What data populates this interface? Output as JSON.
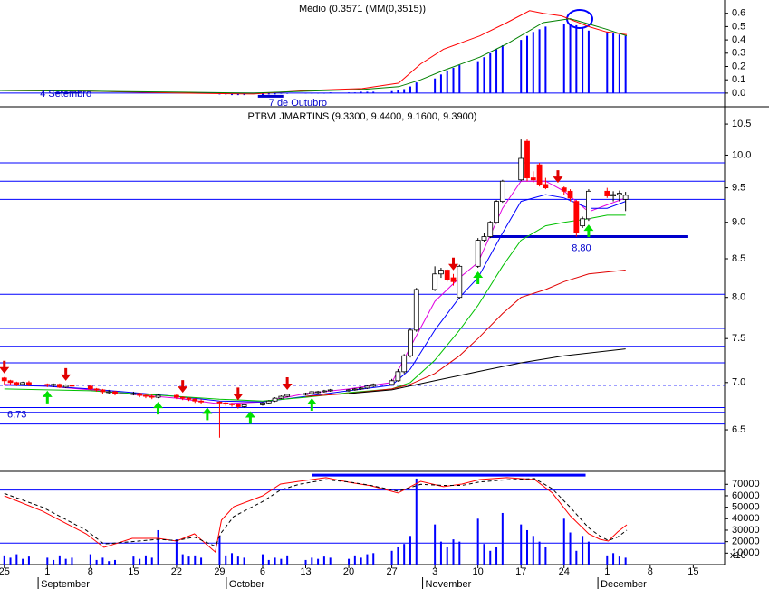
{
  "chart_data": [
    {
      "type": "bar",
      "title": "Médio (0.3571 (MM(0,3515))",
      "xlim": [
        -0.7,
        117.1
      ],
      "ylim": [
        -0.1,
        0.7
      ],
      "yticks": [
        {
          "value": 0,
          "label": "0.0"
        },
        0.1,
        0.2,
        0.3,
        0.4,
        0.5,
        0.6
      ],
      "color": "#0000ff",
      "x": [
        35,
        36,
        37,
        38,
        39,
        42,
        43,
        44,
        45,
        46,
        49,
        50,
        51,
        52,
        53,
        56,
        57,
        58,
        59,
        60,
        63,
        64,
        65,
        66,
        67,
        70,
        71,
        72,
        73,
        74,
        77,
        78,
        79,
        80,
        81,
        84,
        85,
        86,
        87,
        88,
        91,
        92,
        93,
        94,
        95,
        98,
        99,
        100,
        101
      ],
      "values": [
        -0.01,
        -0.01,
        -0.015,
        -0.015,
        -0.015,
        -0.015,
        -0.01,
        -0.01,
        -0.005,
        -0.005,
        0,
        0,
        0,
        0,
        0.005,
        0.005,
        0.005,
        0.01,
        0.01,
        0.01,
        0.015,
        0.02,
        0.03,
        0.05,
        0.08,
        0.11,
        0.14,
        0.17,
        0.19,
        0.21,
        0.24,
        0.27,
        0.3,
        0.33,
        0.36,
        0.4,
        0.43,
        0.46,
        0.48,
        0.5,
        0.52,
        0.52,
        0.51,
        0.49,
        0.47,
        0.46,
        0.45,
        0.44,
        0.43
      ],
      "lines": [
        {
          "color": "#ff0000",
          "x": [
            -0.7,
            14,
            28.7,
            40.5,
            49.3,
            58.2,
            64.1,
            67.7,
            71.4,
            77.3,
            81.7,
            85.4,
            87.6,
            90.6,
            95,
            97.9,
            101.2
          ],
          "values": [
            0.02,
            0.014,
            0,
            -0.007,
            0.02,
            0.034,
            0.075,
            0.22,
            0.33,
            0.43,
            0.53,
            0.62,
            0.6,
            0.58,
            0.5,
            0.46,
            0.44
          ]
        },
        {
          "color": "#008000",
          "x": [
            -0.7,
            14,
            28.7,
            40.5,
            49.3,
            58.2,
            64.1,
            67.7,
            71.4,
            77.3,
            81.7,
            87.6,
            92,
            95,
            97.9,
            101.2
          ],
          "values": [
            0.02,
            0.014,
            0.007,
            0,
            0.014,
            0.027,
            0.048,
            0.1,
            0.17,
            0.27,
            0.37,
            0.53,
            0.56,
            0.52,
            0.48,
            0.43
          ]
        }
      ],
      "annotations": [
        {
          "text": "4 Setembro",
          "x": 10
        },
        {
          "text": "7 de Outubro",
          "x": 43
        }
      ]
    },
    {
      "type": "candlestick",
      "title": "PTBVLJMARTINS (9.3300, 9.4400, 9.1600, 9.3900)",
      "xlim": [
        -0.7,
        117.1
      ],
      "ylim": [
        6.1,
        10.75
      ],
      "log": true,
      "yticks": [
        6.5,
        {
          "value": 7,
          "label": "7.0"
        },
        7.5,
        {
          "value": 8,
          "label": "8.0"
        },
        8.5,
        {
          "value": 9,
          "label": "9.0"
        },
        9.5,
        {
          "value": 10,
          "label": "10.0"
        },
        10.5
      ],
      "up_color": "#ffffff",
      "down_color": "#ff0000",
      "x": [
        0,
        1,
        2,
        3,
        4,
        7,
        8,
        9,
        10,
        11,
        14,
        15,
        16,
        17,
        18,
        21,
        22,
        23,
        24,
        25,
        28,
        29,
        30,
        31,
        32,
        35,
        36,
        37,
        38,
        39,
        42,
        43,
        44,
        45,
        46,
        49,
        50,
        51,
        52,
        53,
        56,
        57,
        58,
        59,
        60,
        63,
        64,
        65,
        66,
        67,
        70,
        71,
        72,
        73,
        74,
        77,
        78,
        79,
        80,
        81,
        84,
        85,
        86,
        87,
        88,
        91,
        92,
        93,
        94,
        95,
        98,
        99,
        100,
        101
      ],
      "open": [
        7.05,
        7.02,
        7.0,
        6.98,
        7.0,
        6.98,
        6.97,
        6.98,
        6.95,
        6.97,
        6.96,
        6.93,
        6.92,
        6.9,
        6.9,
        6.88,
        6.88,
        6.86,
        6.85,
        6.84,
        6.86,
        6.84,
        6.83,
        6.82,
        6.8,
        6.79,
        6.78,
        6.77,
        6.76,
        6.74,
        6.76,
        6.78,
        6.8,
        6.83,
        6.85,
        6.87,
        6.88,
        6.9,
        6.9,
        6.91,
        6.92,
        6.92,
        6.93,
        6.94,
        6.96,
        6.98,
        7.02,
        7.12,
        7.3,
        7.6,
        8.1,
        8.3,
        8.35,
        8.25,
        8.0,
        8.4,
        8.75,
        8.8,
        9.0,
        9.3,
        9.62,
        10.22,
        9.65,
        9.85,
        9.55,
        9.5,
        9.45,
        9.3,
        8.95,
        9.05,
        9.45,
        9.38,
        9.4,
        9.33
      ],
      "high": [
        7.06,
        7.03,
        7.01,
        7.01,
        7.02,
        6.99,
        6.99,
        6.99,
        6.98,
        6.98,
        6.97,
        6.94,
        6.93,
        6.92,
        6.91,
        6.9,
        6.89,
        6.88,
        6.87,
        6.88,
        6.87,
        6.85,
        6.84,
        6.83,
        6.82,
        6.8,
        6.79,
        6.78,
        6.77,
        6.77,
        6.79,
        6.81,
        6.84,
        6.86,
        6.88,
        6.89,
        6.91,
        6.91,
        6.92,
        6.93,
        6.93,
        6.94,
        6.95,
        6.97,
        6.99,
        7.04,
        7.15,
        7.32,
        7.62,
        8.12,
        8.4,
        8.38,
        8.36,
        8.3,
        8.42,
        8.78,
        8.85,
        9.02,
        9.32,
        9.62,
        10.25,
        10.25,
        9.75,
        9.88,
        9.65,
        9.52,
        9.48,
        9.32,
        9.08,
        9.48,
        9.5,
        9.45,
        9.46,
        9.44
      ],
      "low": [
        6.98,
        6.98,
        6.96,
        6.97,
        6.96,
        6.95,
        6.95,
        6.94,
        6.94,
        6.94,
        6.92,
        6.9,
        6.88,
        6.88,
        6.86,
        6.86,
        6.84,
        6.83,
        6.82,
        6.83,
        6.82,
        6.81,
        6.8,
        6.78,
        6.77,
        6.42,
        6.75,
        6.74,
        6.72,
        6.73,
        6.75,
        6.77,
        6.79,
        6.82,
        6.84,
        6.86,
        6.87,
        6.88,
        6.89,
        6.9,
        6.9,
        6.91,
        6.92,
        6.93,
        6.95,
        6.97,
        7.01,
        7.1,
        7.28,
        7.58,
        8.08,
        8.25,
        8.2,
        8.15,
        7.98,
        8.38,
        8.72,
        8.78,
        8.98,
        9.28,
        9.6,
        9.6,
        9.58,
        9.52,
        9.48,
        9.4,
        9.3,
        8.8,
        8.92,
        9.02,
        9.35,
        9.3,
        9.3,
        9.16
      ],
      "close": [
        7.02,
        7.0,
        6.98,
        7.0,
        6.98,
        6.97,
        6.98,
        6.95,
        6.97,
        6.96,
        6.93,
        6.92,
        6.9,
        6.9,
        6.88,
        6.88,
        6.86,
        6.85,
        6.84,
        6.86,
        6.84,
        6.83,
        6.82,
        6.8,
        6.79,
        6.78,
        6.77,
        6.76,
        6.74,
        6.76,
        6.78,
        6.8,
        6.83,
        6.85,
        6.87,
        6.88,
        6.9,
        6.9,
        6.91,
        6.92,
        6.92,
        6.93,
        6.94,
        6.96,
        6.98,
        7.02,
        7.12,
        7.3,
        7.6,
        8.1,
        8.3,
        8.35,
        8.22,
        8.2,
        8.4,
        8.75,
        8.8,
        9.0,
        9.3,
        9.6,
        9.95,
        9.65,
        9.62,
        9.55,
        9.5,
        9.45,
        9.35,
        8.85,
        9.05,
        9.45,
        9.38,
        9.4,
        9.42,
        9.39
      ],
      "lines": [
        {
          "color": "#e000e0",
          "x": [
            0,
            7,
            14,
            21,
            28,
            35,
            42,
            49,
            56,
            63,
            66,
            70,
            74,
            77,
            81,
            84,
            88,
            91,
            95,
            98,
            101
          ],
          "values": [
            6.98,
            6.96,
            6.92,
            6.87,
            6.83,
            6.77,
            6.79,
            6.88,
            6.93,
            7.0,
            7.4,
            7.95,
            8.25,
            8.45,
            9.2,
            9.6,
            9.6,
            9.45,
            9.15,
            9.25,
            9.35
          ]
        },
        {
          "color": "#0000ff",
          "x": [
            0,
            7,
            14,
            21,
            28,
            35,
            42,
            49,
            56,
            63,
            66,
            70,
            74,
            77,
            81,
            84,
            88,
            91,
            95,
            98,
            101
          ],
          "values": [
            6.97,
            6.96,
            6.93,
            6.89,
            6.85,
            6.8,
            6.79,
            6.85,
            6.91,
            6.97,
            7.15,
            7.6,
            8.0,
            8.25,
            8.85,
            9.3,
            9.4,
            9.35,
            9.2,
            9.2,
            9.3
          ]
        },
        {
          "color": "#00c000",
          "x": [
            0,
            7,
            14,
            21,
            28,
            35,
            42,
            49,
            56,
            63,
            66,
            70,
            74,
            77,
            81,
            84,
            88,
            91,
            95,
            98,
            101
          ],
          "values": [
            6.93,
            6.92,
            6.91,
            6.88,
            6.85,
            6.82,
            6.8,
            6.84,
            6.89,
            6.93,
            7.0,
            7.25,
            7.6,
            7.9,
            8.4,
            8.75,
            8.95,
            9.0,
            9.05,
            9.1,
            9.1
          ]
        },
        {
          "color": "#e00000",
          "x": [
            49,
            56,
            63,
            66,
            70,
            74,
            77,
            81,
            84,
            88,
            91,
            95,
            101
          ],
          "values": [
            6.85,
            6.88,
            6.93,
            6.98,
            7.1,
            7.3,
            7.5,
            7.8,
            8.0,
            8.1,
            8.2,
            8.3,
            8.35
          ]
        },
        {
          "color": "#000000",
          "x": [
            56,
            63,
            70,
            77,
            84,
            91,
            101
          ],
          "values": [
            6.88,
            6.92,
            7.02,
            7.12,
            7.22,
            7.3,
            7.38
          ]
        }
      ],
      "levels": [
        9.88,
        9.6,
        9.33,
        8.04,
        7.62,
        7.41,
        7.22,
        6.68,
        6.56
      ],
      "dashed_level": 6.97,
      "marked_level": {
        "value": 6.73,
        "label": "6,73"
      },
      "support": {
        "value": 8.8,
        "label": "8,80",
        "x": [
          78.8,
          111.2
        ]
      },
      "sell_signals": [
        0,
        10,
        29,
        38,
        46,
        73,
        90
      ],
      "buy_signals": [
        7,
        25,
        33,
        40,
        50,
        77,
        95
      ]
    },
    {
      "type": "bar",
      "xlim": [
        -0.7,
        117.1
      ],
      "ylim": [
        0,
        80000
      ],
      "yticks": [
        10000,
        20000,
        30000,
        40000,
        50000,
        60000,
        70000
      ],
      "unit_label": "x10",
      "color": "#0000ff",
      "x": [
        0,
        1,
        2,
        3,
        4,
        7,
        8,
        9,
        10,
        11,
        14,
        15,
        16,
        17,
        18,
        21,
        22,
        23,
        24,
        25,
        28,
        29,
        30,
        31,
        32,
        35,
        36,
        37,
        38,
        39,
        42,
        43,
        44,
        45,
        46,
        49,
        50,
        51,
        52,
        53,
        56,
        57,
        58,
        59,
        60,
        63,
        64,
        65,
        66,
        67,
        70,
        71,
        72,
        73,
        74,
        77,
        78,
        79,
        80,
        81,
        84,
        85,
        86,
        87,
        88,
        91,
        92,
        93,
        94,
        95,
        98,
        99,
        100,
        101
      ],
      "values": [
        8000,
        6000,
        9000,
        5000,
        7000,
        6000,
        4000,
        8000,
        5000,
        6000,
        9000,
        4000,
        6000,
        3000,
        4000,
        7000,
        5000,
        8000,
        6000,
        30000,
        22000,
        9000,
        7000,
        8000,
        6000,
        25000,
        8000,
        10000,
        7000,
        6000,
        9000,
        4000,
        6000,
        5000,
        8000,
        4000,
        6000,
        5000,
        7000,
        6000,
        5000,
        8000,
        6000,
        9000,
        10000,
        12000,
        15000,
        18000,
        25000,
        75000,
        35000,
        20000,
        15000,
        22000,
        20000,
        40000,
        18000,
        12000,
        15000,
        45000,
        35000,
        30000,
        25000,
        20000,
        15000,
        40000,
        28000,
        12000,
        25000,
        20000,
        8000,
        10000,
        7000,
        6000
      ],
      "lines": [
        {
          "color": "#ff0000",
          "dash": false,
          "x": [
            0,
            6.2,
            13.3,
            16.2,
            20.8,
            25,
            28,
            30.9,
            34.3,
            35.3,
            37.3,
            42,
            44.9,
            47.9,
            52.3,
            56,
            59.6,
            64,
            67.7,
            71.4,
            74.4,
            77.3,
            81.7,
            86.2,
            89.1,
            92,
            95,
            96.8,
            98.2,
            99.7,
            101.2
          ],
          "values": [
            60000,
            46600,
            26800,
            15000,
            22900,
            22900,
            20500,
            26800,
            11000,
            38700,
            50500,
            60000,
            70200,
            72600,
            75800,
            71800,
            68700,
            62400,
            72600,
            67900,
            70200,
            74200,
            75800,
            74200,
            62400,
            42600,
            26800,
            22100,
            20500,
            28400,
            34700
          ]
        },
        {
          "color": "#000000",
          "dash": true,
          "x": [
            0,
            6.2,
            13.3,
            16.2,
            20.8,
            25,
            28,
            30.9,
            34.3,
            35.3,
            37.3,
            42,
            44.9,
            47.9,
            52.3,
            56,
            59.6,
            64,
            67.7,
            71.4,
            74.4,
            77.3,
            81.7,
            86.2,
            89.1,
            92,
            95,
            96.8,
            98.2,
            99.7,
            101.2
          ],
          "values": [
            62000,
            50000,
            30000,
            18000,
            20000,
            22000,
            21000,
            24000,
            16000,
            28000,
            42000,
            55000,
            65000,
            70000,
            74000,
            72000,
            69000,
            64000,
            70000,
            69000,
            69000,
            72000,
            74000,
            75000,
            66000,
            50000,
            32000,
            25000,
            21000,
            24000,
            30000
          ]
        }
      ],
      "levels": [
        65000,
        18700
      ],
      "band": {
        "value": 78000,
        "x": [
          50,
          94.5
        ]
      },
      "xticks": [
        {
          "value": 0,
          "label": "25"
        },
        {
          "value": 7,
          "label": "1"
        },
        {
          "value": 14,
          "label": "8"
        },
        {
          "value": 21,
          "label": "15"
        },
        {
          "value": 28,
          "label": "22"
        },
        {
          "value": 35,
          "label": "29"
        },
        {
          "value": 42,
          "label": "6"
        },
        {
          "value": 49,
          "label": "13"
        },
        {
          "value": 56,
          "label": "20"
        },
        {
          "value": 63,
          "label": "27"
        },
        {
          "value": 70,
          "label": "3"
        },
        {
          "value": 77,
          "label": "10"
        },
        {
          "value": 84,
          "label": "17"
        },
        {
          "value": 91,
          "label": "24"
        },
        {
          "value": 98,
          "label": "1"
        },
        {
          "value": 105,
          "label": "8"
        },
        {
          "value": 112,
          "label": "15"
        }
      ],
      "months": [
        {
          "value": 5.5,
          "label": "September"
        },
        {
          "value": 36.1,
          "label": "October"
        },
        {
          "value": 68,
          "label": "November"
        },
        {
          "value": 96.5,
          "label": "December"
        }
      ]
    }
  ]
}
